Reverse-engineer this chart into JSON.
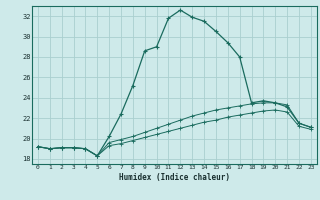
{
  "xlabel": "Humidex (Indice chaleur)",
  "background_color": "#ceeaea",
  "grid_color": "#aacfcf",
  "line_color": "#1a6b5e",
  "xlim": [
    -0.5,
    23.5
  ],
  "ylim": [
    17.5,
    33.0
  ],
  "yticks": [
    18,
    20,
    22,
    24,
    26,
    28,
    30,
    32
  ],
  "xticks": [
    0,
    1,
    2,
    3,
    4,
    5,
    6,
    7,
    8,
    9,
    10,
    11,
    12,
    13,
    14,
    15,
    16,
    17,
    18,
    19,
    20,
    21,
    22,
    23
  ],
  "series1_x": [
    0,
    1,
    2,
    3,
    4,
    5,
    6,
    7,
    8,
    9,
    10,
    11,
    12,
    13,
    14,
    15,
    16,
    17,
    18,
    19,
    20,
    21,
    22,
    23
  ],
  "series1_y": [
    19.2,
    19.0,
    19.1,
    19.1,
    19.0,
    18.3,
    20.2,
    22.4,
    25.2,
    28.6,
    29.0,
    31.8,
    32.6,
    31.9,
    31.5,
    30.5,
    29.4,
    28.0,
    23.5,
    23.7,
    23.5,
    23.1,
    21.5,
    21.1
  ],
  "series2_x": [
    0,
    1,
    2,
    3,
    4,
    5,
    6,
    7,
    8,
    9,
    10,
    11,
    12,
    13,
    14,
    15,
    16,
    17,
    18,
    19,
    20,
    21,
    22,
    23
  ],
  "series2_y": [
    19.2,
    19.0,
    19.1,
    19.1,
    19.0,
    18.3,
    19.6,
    19.9,
    20.2,
    20.6,
    21.0,
    21.4,
    21.8,
    22.2,
    22.5,
    22.8,
    23.0,
    23.2,
    23.4,
    23.5,
    23.5,
    23.3,
    21.5,
    21.1
  ],
  "series3_x": [
    0,
    1,
    2,
    3,
    4,
    5,
    6,
    7,
    8,
    9,
    10,
    11,
    12,
    13,
    14,
    15,
    16,
    17,
    18,
    19,
    20,
    21,
    22,
    23
  ],
  "series3_y": [
    19.2,
    19.0,
    19.1,
    19.1,
    19.0,
    18.3,
    19.3,
    19.5,
    19.8,
    20.1,
    20.4,
    20.7,
    21.0,
    21.3,
    21.6,
    21.8,
    22.1,
    22.3,
    22.5,
    22.7,
    22.8,
    22.6,
    21.2,
    20.9
  ]
}
